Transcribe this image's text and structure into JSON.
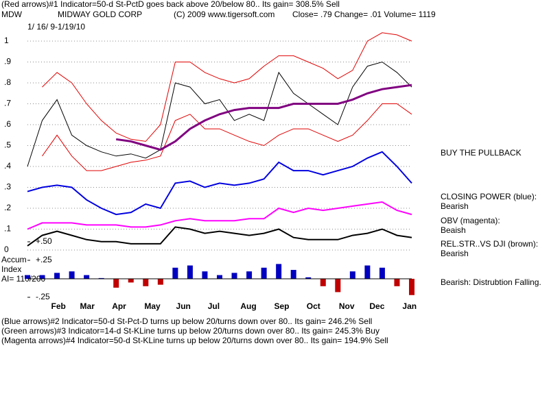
{
  "header": {
    "line1": "(Red arrows)#1 Indicator=50-d St-PctD goes back above 20/below 80.. Its gain= 308.5% Sell",
    "symbol": "MDW",
    "company": "MIDWAY GOLD CORP",
    "copyright": "(C) 2009 www.tigersoft.com",
    "quote": "Close= .79 Change= .01 Volume= 1119",
    "dates": "1/ 16/ 9-1/19/10"
  },
  "notes": [
    "BUY THE PULLBACK",
    "CLOSING POWER (blue):",
    "Bearish",
    "OBV (magenta):",
    "Beaish",
    "REL.STR..VS DJI (brown):",
    "Bearish",
    "Bearish: Distrubtion Falling."
  ],
  "accum_label": [
    "Accum",
    "Index",
    "AI= 110/200"
  ],
  "footer": [
    "(Blue arrows)#2 Indicator=50-d St-Pct-D turns up below 20/turns down over 80.. Its gain= 246.2% Sell",
    "(Green arrows)#3 Indicator=14-d St-KLine turns up below 20/turns down over 80.. Its gain= 245.3% Buy",
    "(Magenta arrows)#4 Indicator=50-d St-KLine turns up below 20/turns down over 80.. Its gain= 194.9% Sell"
  ],
  "chart_data": [
    {
      "type": "line",
      "x": [
        0,
        2,
        4,
        6,
        8,
        10,
        12,
        14,
        16,
        18,
        20,
        22,
        24,
        26,
        28,
        30,
        32,
        34,
        36,
        38,
        40,
        42,
        44,
        46,
        48,
        50,
        52
      ],
      "xlim": [
        0,
        52
      ],
      "ylim": [
        0,
        1.05
      ],
      "yticks": [
        0,
        {
          "value": 0.1,
          "label": ".1"
        },
        {
          "value": 0.2,
          "label": ".2"
        },
        {
          "value": 0.3,
          "label": ".3"
        },
        {
          "value": 0.4,
          "label": ".4"
        },
        {
          "value": 0.5,
          "label": ".5"
        },
        {
          "value": 0.6,
          "label": ".6"
        },
        {
          "value": 0.7,
          "label": ".7"
        },
        {
          "value": 0.8,
          "label": ".8"
        },
        {
          "value": 0.9,
          "label": ".9"
        },
        1
      ],
      "grid": true,
      "series": [
        {
          "color": "#000000",
          "width": 1,
          "values": [
            0.4,
            0.62,
            0.72,
            0.55,
            0.5,
            0.47,
            0.45,
            0.46,
            0.44,
            0.48,
            0.8,
            0.78,
            0.7,
            0.72,
            0.62,
            0.65,
            0.62,
            0.85,
            0.75,
            0.7,
            0.65,
            0.6,
            0.78,
            0.88,
            0.9,
            0.85,
            0.78
          ]
        },
        {
          "color": "#e00000",
          "width": 1,
          "values": [
            null,
            0.78,
            0.85,
            0.8,
            0.7,
            0.62,
            0.56,
            0.53,
            0.52,
            0.6,
            0.9,
            0.9,
            0.85,
            0.82,
            0.8,
            0.82,
            0.88,
            0.93,
            0.93,
            0.9,
            0.87,
            0.82,
            0.86,
            1.0,
            1.04,
            1.03,
            1.0
          ]
        },
        {
          "color": "#e00000",
          "width": 1,
          "values": [
            null,
            0.45,
            0.55,
            0.45,
            0.38,
            0.38,
            0.4,
            0.42,
            0.43,
            0.45,
            0.62,
            0.65,
            0.58,
            0.58,
            0.55,
            0.52,
            0.5,
            0.55,
            0.58,
            0.58,
            0.55,
            0.52,
            0.55,
            0.62,
            0.7,
            0.7,
            0.65
          ]
        },
        {
          "color": "#800080",
          "width": 3,
          "values": [
            null,
            null,
            null,
            null,
            null,
            null,
            0.53,
            0.52,
            0.5,
            0.48,
            0.52,
            0.58,
            0.62,
            0.65,
            0.67,
            0.68,
            0.68,
            0.68,
            0.7,
            0.7,
            0.7,
            0.7,
            0.72,
            0.75,
            0.77,
            0.78,
            0.79
          ]
        },
        {
          "color": "#0000e0",
          "width": 2,
          "values": [
            0.28,
            0.3,
            0.31,
            0.3,
            0.24,
            0.2,
            0.17,
            0.18,
            0.22,
            0.2,
            0.32,
            0.33,
            0.3,
            0.32,
            0.31,
            0.32,
            0.34,
            0.42,
            0.38,
            0.38,
            0.36,
            0.38,
            0.4,
            0.44,
            0.47,
            0.4,
            0.32
          ]
        },
        {
          "color": "#ff00ff",
          "width": 2,
          "values": [
            0.1,
            0.13,
            0.13,
            0.13,
            0.12,
            0.12,
            0.12,
            0.11,
            0.11,
            0.12,
            0.14,
            0.15,
            0.14,
            0.14,
            0.14,
            0.15,
            0.15,
            0.2,
            0.18,
            0.2,
            0.19,
            0.2,
            0.21,
            0.22,
            0.23,
            0.19,
            0.17
          ]
        },
        {
          "color": "#000000",
          "width": 2,
          "values": [
            0.02,
            0.07,
            0.09,
            0.07,
            0.05,
            0.04,
            0.04,
            0.03,
            0.03,
            0.03,
            0.11,
            0.1,
            0.08,
            0.09,
            0.08,
            0.07,
            0.08,
            0.1,
            0.06,
            0.05,
            0.05,
            0.05,
            0.07,
            0.08,
            0.1,
            0.07,
            0.06
          ]
        }
      ]
    },
    {
      "type": "bar",
      "x": [
        0,
        2,
        4,
        6,
        8,
        10,
        12,
        14,
        16,
        18,
        20,
        22,
        24,
        26,
        28,
        30,
        32,
        34,
        36,
        38,
        40,
        42,
        44,
        46,
        48,
        50,
        52
      ],
      "xlim": [
        0,
        52
      ],
      "ylim": [
        -0.45,
        0.5
      ],
      "xticks": [
        {
          "value": 4.2,
          "label": "Feb"
        },
        {
          "value": 8.1,
          "label": "Mar"
        },
        {
          "value": 12.4,
          "label": "Apr"
        },
        {
          "value": 16.9,
          "label": "May"
        },
        {
          "value": 21.1,
          "label": "Jun"
        },
        {
          "value": 25.2,
          "label": "Jul"
        },
        {
          "value": 29.9,
          "label": "Aug"
        },
        {
          "value": 34.4,
          "label": "Sep"
        },
        {
          "value": 38.7,
          "label": "Oct"
        },
        {
          "value": 43.2,
          "label": "Nov"
        },
        {
          "value": 47.3,
          "label": "Dec"
        },
        {
          "value": 51.7,
          "label": "Jan"
        }
      ],
      "yticks": [
        {
          "value": 0.5,
          "label": "+.50"
        },
        {
          "value": 0.25,
          "label": "+.25"
        },
        {
          "value": -0.25,
          "label": "-.25"
        }
      ],
      "positive_color": "#0000c0",
      "negative_color": "#c00000",
      "values": [
        0.05,
        0.05,
        0.08,
        0.1,
        0.05,
        0.01,
        -0.12,
        -0.05,
        -0.1,
        -0.08,
        0.15,
        0.18,
        0.1,
        0.05,
        0.08,
        0.1,
        0.15,
        0.2,
        0.12,
        0.02,
        -0.1,
        -0.18,
        0.1,
        0.18,
        0.15,
        -0.1,
        -0.22
      ]
    }
  ]
}
